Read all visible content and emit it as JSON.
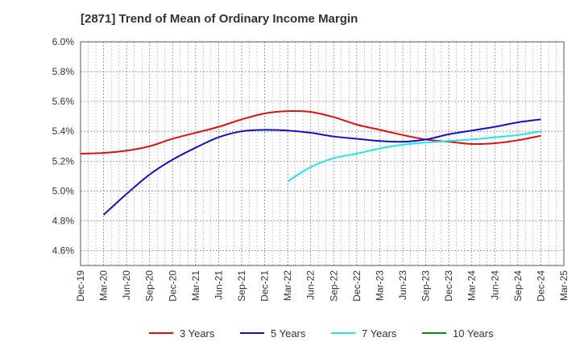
{
  "chart_data": {
    "type": "line",
    "title": "[2871]  Trend of Mean of Ordinary Income Margin",
    "xlabel": "",
    "ylabel": "",
    "x_ticks": [
      "Dec-19",
      "Mar-20",
      "Jun-20",
      "Sep-20",
      "Dec-20",
      "Mar-21",
      "Jun-21",
      "Sep-21",
      "Dec-21",
      "Mar-22",
      "Jun-22",
      "Sep-22",
      "Dec-22",
      "Mar-23",
      "Jun-23",
      "Sep-23",
      "Dec-23",
      "Mar-24",
      "Jun-24",
      "Sep-24",
      "Dec-24",
      "Mar-25"
    ],
    "y_ticks": [
      "4.6%",
      "4.8%",
      "5.0%",
      "5.2%",
      "5.4%",
      "5.6%",
      "5.8%",
      "6.0%"
    ],
    "ylim": [
      4.5,
      6.0
    ],
    "grid": true,
    "legend_position": "bottom",
    "series": [
      {
        "name": "3 Years",
        "color": "#dd1111",
        "x": [
          "Dec-19",
          "Mar-20",
          "Jun-20",
          "Sep-20",
          "Dec-20",
          "Mar-21",
          "Jun-21",
          "Sep-21",
          "Dec-21",
          "Mar-22",
          "Jun-22",
          "Sep-22",
          "Dec-22",
          "Mar-23",
          "Jun-23",
          "Sep-23",
          "Dec-23",
          "Mar-24",
          "Jun-24",
          "Sep-24",
          "Dec-24"
        ],
        "values": [
          5.25,
          5.255,
          5.27,
          5.3,
          5.35,
          5.39,
          5.43,
          5.48,
          5.52,
          5.535,
          5.53,
          5.495,
          5.445,
          5.41,
          5.375,
          5.345,
          5.33,
          5.315,
          5.32,
          5.34,
          5.37
        ]
      },
      {
        "name": "5 Years",
        "color": "#1111cc",
        "x": [
          "Mar-20",
          "Jun-20",
          "Sep-20",
          "Dec-20",
          "Mar-21",
          "Jun-21",
          "Sep-21",
          "Dec-21",
          "Mar-22",
          "Jun-22",
          "Sep-22",
          "Dec-22",
          "Mar-23",
          "Jun-23",
          "Sep-23",
          "Dec-23",
          "Mar-24",
          "Jun-24",
          "Sep-24",
          "Dec-24"
        ],
        "values": [
          4.84,
          4.98,
          5.11,
          5.21,
          5.29,
          5.36,
          5.4,
          5.41,
          5.405,
          5.39,
          5.365,
          5.35,
          5.335,
          5.33,
          5.345,
          5.38,
          5.405,
          5.43,
          5.46,
          5.48
        ]
      },
      {
        "name": "7 Years",
        "color": "#22e6e6",
        "x": [
          "Mar-22",
          "Jun-22",
          "Sep-22",
          "Dec-22",
          "Mar-23",
          "Jun-23",
          "Sep-23",
          "Dec-23",
          "Mar-24",
          "Jun-24",
          "Sep-24",
          "Dec-24"
        ],
        "values": [
          5.065,
          5.16,
          5.22,
          5.25,
          5.285,
          5.31,
          5.325,
          5.335,
          5.345,
          5.36,
          5.375,
          5.4
        ]
      },
      {
        "name": "10 Years",
        "color": "#118811",
        "x": [],
        "values": []
      }
    ]
  }
}
